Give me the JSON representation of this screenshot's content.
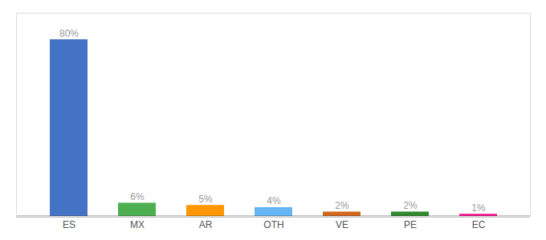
{
  "chart_data": {
    "type": "bar",
    "categories": [
      "ES",
      "MX",
      "AR",
      "OTH",
      "VE",
      "PE",
      "EC"
    ],
    "values": [
      80,
      6,
      5,
      4,
      2,
      2,
      1
    ],
    "value_labels": [
      "80%",
      "6%",
      "5%",
      "4%",
      "2%",
      "2%",
      "1%"
    ],
    "colors": [
      "#4472C4",
      "#4CAF50",
      "#FF9800",
      "#64B5F6",
      "#D2691E",
      "#2E8B2E",
      "#FF1493"
    ],
    "ylim": [
      0,
      92
    ],
    "data_labels": true,
    "tick_labels": "x",
    "grid": false
  }
}
